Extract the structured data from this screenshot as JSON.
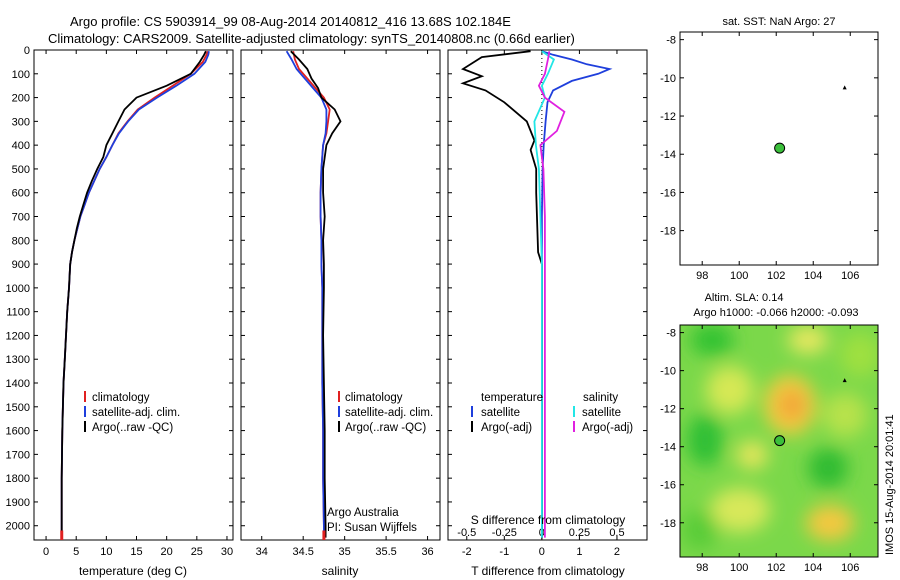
{
  "figure": {
    "title_line1": "Argo profile: CS 5903914_99 08-Aug-2014 20140812_416 13.68S 102.184E",
    "title_line2": "Climatology: CARS2009. Satellite-adjusted climatology: synTS_20140808.nc (0.66d earlier)",
    "side_label": "IMOS 15-Aug-2014 20:01:41",
    "colors": {
      "climatology": "#e02020",
      "satellite": "#1f3fdc",
      "argo": "#000000",
      "cyan": "#22e6e6",
      "magenta": "#e020e0",
      "marker": "#3bbf3b"
    }
  },
  "chart_data": [
    {
      "type": "line",
      "name": "temperature-profile",
      "xlabel": "temperature (deg C)",
      "ylabel": "",
      "xlim": [
        -2,
        31
      ],
      "ylim": [
        2060,
        0
      ],
      "xticks": [
        0,
        5,
        10,
        15,
        20,
        25,
        30
      ],
      "yticks": [
        0,
        100,
        200,
        300,
        400,
        500,
        600,
        700,
        800,
        900,
        1000,
        1100,
        1200,
        1300,
        1400,
        1500,
        1600,
        1700,
        1800,
        1900,
        2000
      ],
      "legend": [
        "climatology",
        "satellite-adj. clim.",
        "Argo(..raw -QC)"
      ],
      "legend_position": "lower-center",
      "series": [
        {
          "name": "climatology",
          "color": "red",
          "x": [
            26.8,
            26.6,
            26,
            24,
            21,
            18,
            15.2,
            13.5,
            12,
            11,
            10,
            8.9,
            8,
            7.1,
            6.4,
            5.7,
            5.2,
            4.7,
            4.3,
            4,
            3.8,
            3.5,
            3.3,
            3.1,
            2.9,
            2.8,
            2.7,
            2.6,
            2.6
          ],
          "y": [
            5,
            20,
            50,
            100,
            150,
            200,
            250,
            300,
            350,
            400,
            450,
            500,
            550,
            600,
            650,
            700,
            750,
            800,
            850,
            900,
            1000,
            1100,
            1200,
            1300,
            1400,
            1500,
            1600,
            1800,
            2050
          ]
        },
        {
          "name": "satellite-adj. clim.",
          "color": "blue",
          "x": [
            27,
            26.9,
            26.4,
            24.6,
            21.6,
            18.4,
            15.4,
            13.6,
            12.1,
            11,
            10,
            8.9,
            8,
            7.1,
            6.4,
            5.7,
            5.2,
            4.7,
            4.3,
            4,
            3.8,
            3.5,
            3.3,
            3.1,
            2.9,
            2.8,
            2.7,
            2.6,
            2.6
          ],
          "y": [
            5,
            20,
            50,
            100,
            150,
            200,
            250,
            300,
            350,
            400,
            450,
            500,
            550,
            600,
            650,
            700,
            750,
            800,
            850,
            900,
            1000,
            1100,
            1200,
            1300,
            1400,
            1500,
            1600,
            1800,
            2050
          ]
        },
        {
          "name": "Argo(..raw -QC)",
          "color": "black",
          "x": [
            26.5,
            26.2,
            25.5,
            24,
            20,
            15,
            13,
            12,
            11,
            10,
            9.5,
            8.5,
            7.6,
            6.8,
            6.2,
            5.6,
            5.1,
            4.7,
            4.3,
            4,
            3.8,
            3.5,
            3.3,
            3.1,
            2.9,
            2.8,
            2.7,
            2.6,
            2.6
          ],
          "y": [
            5,
            20,
            50,
            100,
            150,
            200,
            250,
            300,
            350,
            400,
            450,
            500,
            550,
            600,
            650,
            700,
            750,
            800,
            850,
            900,
            1000,
            1100,
            1200,
            1300,
            1400,
            1500,
            1600,
            1800,
            2050
          ]
        }
      ]
    },
    {
      "type": "line",
      "name": "salinity-profile",
      "xlabel": "salinity",
      "ylabel": "",
      "xlim": [
        33.75,
        36.15
      ],
      "ylim": [
        2060,
        0
      ],
      "xticks": [
        34,
        34.5,
        35,
        35.5,
        36
      ],
      "legend": [
        "climatology",
        "satellite-adj. clim.",
        "Argo(..raw -QC)"
      ],
      "legend_position": "lower-center",
      "annotation": [
        "Argo Australia",
        "PI: Susan Wijffels"
      ],
      "series": [
        {
          "name": "climatology",
          "color": "red",
          "x": [
            34.38,
            34.4,
            34.45,
            34.55,
            34.65,
            34.75,
            34.82,
            34.8,
            34.78,
            34.74,
            34.72,
            34.71,
            34.71,
            34.72,
            34.72,
            34.73,
            34.73,
            34.73,
            34.74,
            34.74,
            34.75,
            34.75
          ],
          "y": [
            5,
            40,
            80,
            120,
            160,
            200,
            250,
            300,
            350,
            400,
            500,
            600,
            700,
            800,
            900,
            1000,
            1200,
            1400,
            1600,
            1800,
            2000,
            2050
          ]
        },
        {
          "name": "satellite-adj. clim.",
          "color": "blue",
          "x": [
            34.3,
            34.36,
            34.42,
            34.52,
            34.62,
            34.72,
            34.78,
            34.78,
            34.77,
            34.74,
            34.72,
            34.71,
            34.71,
            34.72,
            34.72,
            34.73,
            34.73,
            34.73,
            34.74,
            34.74,
            34.75,
            34.75
          ],
          "y": [
            5,
            40,
            80,
            120,
            160,
            200,
            250,
            300,
            350,
            400,
            500,
            600,
            700,
            800,
            900,
            1000,
            1200,
            1400,
            1600,
            1800,
            2000,
            2050
          ]
        },
        {
          "name": "Argo(..raw -QC)",
          "color": "black",
          "x": [
            34.35,
            34.45,
            34.55,
            34.6,
            34.68,
            34.72,
            34.88,
            34.95,
            34.85,
            34.78,
            34.74,
            34.74,
            34.76,
            34.74,
            34.75,
            34.75,
            34.74,
            34.75,
            34.76,
            34.76,
            34.77,
            34.77
          ],
          "y": [
            5,
            40,
            80,
            120,
            160,
            200,
            250,
            300,
            350,
            400,
            500,
            600,
            700,
            800,
            900,
            1000,
            1200,
            1400,
            1600,
            1800,
            2000,
            2050
          ]
        }
      ]
    },
    {
      "type": "line",
      "name": "difference-profile",
      "xlabel": "T difference from climatology",
      "xlabel_top": "S difference from climatology",
      "xlim": [
        -2.5,
        2.8
      ],
      "ylim": [
        2060,
        0
      ],
      "xticks": [
        -2,
        -1,
        0,
        1,
        2
      ],
      "xticks_s": [
        "-0.5",
        "-0.25",
        "0",
        "0.25",
        "0.5"
      ],
      "legend_groups": [
        {
          "title": "temperature",
          "items": [
            "satellite",
            "Argo(-adj)"
          ]
        },
        {
          "title": "salinity",
          "items": [
            "satellite",
            "Argo(-adj)"
          ]
        }
      ],
      "legend_position": "lower-center",
      "series": [
        {
          "name": "temperature satellite",
          "color": "blue",
          "x": [
            0,
            0.3,
            0.8,
            1.2,
            1.8,
            1.5,
            0.8,
            0.3,
            0.15,
            0.1,
            0.05,
            0.02,
            0,
            0,
            0,
            0,
            0,
            0,
            0
          ],
          "y": [
            5,
            20,
            40,
            60,
            80,
            100,
            130,
            170,
            220,
            300,
            400,
            500,
            700,
            900,
            1100,
            1300,
            1500,
            1800,
            2050
          ]
        },
        {
          "name": "temperature Argo(-adj)",
          "color": "black",
          "x": [
            -0.3,
            -1.6,
            -2.1,
            -1.6,
            -2.1,
            -1.5,
            -1,
            -0.4,
            -0.2,
            -0.3,
            -0.15,
            -0.15,
            -0.1,
            0,
            0,
            0,
            0,
            0,
            0
          ],
          "y": [
            5,
            30,
            80,
            110,
            140,
            170,
            220,
            300,
            380,
            420,
            500,
            600,
            850,
            900,
            1100,
            1300,
            1500,
            1800,
            2050
          ]
        },
        {
          "name": "salinity satellite",
          "color": "cyan",
          "x": [
            0,
            0.08,
            0.04,
            0.0,
            0.02,
            -0.05,
            -0.04,
            -0.02,
            -0.01,
            0,
            0,
            0,
            0
          ],
          "y": [
            5,
            40,
            100,
            150,
            200,
            300,
            400,
            500,
            700,
            900,
            1200,
            1600,
            2050
          ]
        },
        {
          "name": "salinity Argo(-adj)",
          "color": "magenta",
          "x": [
            0.05,
            0.04,
            0.02,
            -0.02,
            0.02,
            0.15,
            0.1,
            -0.01,
            0.01,
            0.02,
            0.02,
            0.02,
            0.02
          ],
          "y": [
            5,
            40,
            100,
            150,
            200,
            260,
            340,
            400,
            500,
            700,
            1000,
            1400,
            2050
          ]
        }
      ]
    },
    {
      "type": "scatter",
      "name": "sst-map",
      "title": "sat. SST: NaN Argo: 27",
      "xlim": [
        96.8,
        107.5
      ],
      "ylim": [
        -19.8,
        -7.6
      ],
      "xticks": [
        98,
        100,
        102,
        104,
        106
      ],
      "yticks": [
        -8,
        -10,
        -12,
        -14,
        -16,
        -18
      ],
      "points": [
        {
          "name": "argo-position",
          "x": 102.184,
          "y": -13.68,
          "marker": "circle"
        },
        {
          "name": "previous-position",
          "x": 105.7,
          "y": -10.5,
          "marker": "triangle"
        }
      ]
    },
    {
      "type": "heatmap",
      "name": "sla-map",
      "title_line1": "Altim. SLA: 0.14",
      "title_line2": "Argo h1000: -0.066 h2000: -0.093",
      "xlim": [
        96.8,
        107.5
      ],
      "ylim": [
        -19.8,
        -7.6
      ],
      "xticks": [
        98,
        100,
        102,
        104,
        106
      ],
      "yticks": [
        -8,
        -10,
        -12,
        -14,
        -16,
        -18
      ],
      "points": [
        {
          "name": "argo-position",
          "x": 102.184,
          "y": -13.68,
          "marker": "circle"
        },
        {
          "name": "previous-position",
          "x": 105.7,
          "y": -10.5,
          "marker": "triangle"
        }
      ]
    }
  ]
}
